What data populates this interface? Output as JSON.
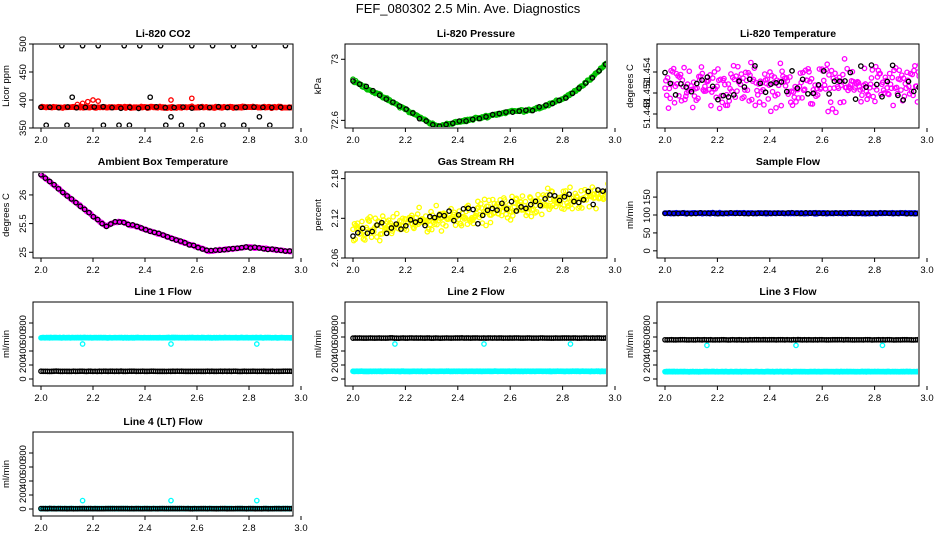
{
  "page": {
    "title": "FEF_080302  2.5 Min. Ave. Diagnostics"
  },
  "colors": {
    "black": "#000000",
    "red": "#ff0000",
    "green": "#00c000",
    "magenta": "#ff00ff",
    "yellow": "#ffff00",
    "cyan": "#00ffff",
    "blue": "#0000ff"
  },
  "chart_data": [
    {
      "id": "co2",
      "type": "scatter",
      "title": "Li-820 CO2",
      "xlabel": "",
      "ylabel": "Licor ppm",
      "xlim": [
        2.0,
        3.0
      ],
      "ylim": [
        350,
        500
      ],
      "xticks": [
        "2.0",
        "2.2",
        "2.4",
        "2.6",
        "2.8",
        "3.0"
      ],
      "yticks": [
        350,
        400,
        450,
        500
      ],
      "series": [
        {
          "name": "red",
          "color": "red",
          "pattern": "flat",
          "start": 387,
          "end": 387,
          "noise": 2,
          "n": 250,
          "spikes": [
            [
              2.14,
              392
            ],
            [
              2.16,
              394
            ],
            [
              2.18,
              397
            ],
            [
              2.2,
              400
            ],
            [
              2.22,
              398
            ],
            [
              2.5,
              400
            ],
            [
              2.58,
              403
            ]
          ]
        },
        {
          "name": "black",
          "color": "black",
          "pattern": "flat",
          "start": 387,
          "end": 387,
          "noise": 2,
          "n": 30,
          "spikes": [
            [
              2.02,
              355
            ],
            [
              2.08,
              497
            ],
            [
              2.1,
              355
            ],
            [
              2.12,
              405
            ],
            [
              2.16,
              497
            ],
            [
              2.22,
              497
            ],
            [
              2.24,
              355
            ],
            [
              2.3,
              355
            ],
            [
              2.32,
              497
            ],
            [
              2.34,
              355
            ],
            [
              2.38,
              497
            ],
            [
              2.42,
              405
            ],
            [
              2.46,
              497
            ],
            [
              2.48,
              355
            ],
            [
              2.5,
              370
            ],
            [
              2.54,
              355
            ],
            [
              2.58,
              497
            ],
            [
              2.62,
              355
            ],
            [
              2.66,
              497
            ],
            [
              2.7,
              355
            ],
            [
              2.74,
              497
            ],
            [
              2.78,
              355
            ],
            [
              2.82,
              497
            ],
            [
              2.84,
              370
            ],
            [
              2.88,
              355
            ],
            [
              2.94,
              497
            ],
            [
              2.98,
              355
            ],
            [
              2.99,
              405
            ]
          ]
        }
      ]
    },
    {
      "id": "pressure",
      "type": "scatter",
      "title": "Li-820 Pressure",
      "xlabel": "",
      "ylabel": "kPa",
      "xlim": [
        2.0,
        3.0
      ],
      "ylim": [
        72.55,
        73.1
      ],
      "xticks": [
        "2.0",
        "2.2",
        "2.4",
        "2.6",
        "2.8",
        "3.0"
      ],
      "yticks": [
        72.6,
        73.0
      ],
      "series": [
        {
          "name": "green",
          "color": "green",
          "pattern": "pressure",
          "noise": 0.012,
          "n": 200
        },
        {
          "name": "black",
          "color": "black",
          "pattern": "pressure",
          "noise": 0.012,
          "n": 40
        }
      ]
    },
    {
      "id": "licor_temp",
      "type": "scatter",
      "title": "Li-820 Temperature",
      "xlabel": "",
      "ylabel": "degrees C",
      "xlim": [
        2.0,
        3.0
      ],
      "ylim": [
        51.446,
        51.458
      ],
      "xticks": [
        "2.0",
        "2.2",
        "2.4",
        "2.6",
        "2.8",
        "3.0"
      ],
      "yticks": [
        51.448,
        51.451,
        51.454
      ],
      "series": [
        {
          "name": "magenta",
          "color": "magenta",
          "pattern": "flat",
          "start": 51.452,
          "end": 51.452,
          "noise": 0.0045,
          "n": 300
        },
        {
          "name": "black",
          "color": "black",
          "pattern": "flat",
          "start": 51.452,
          "end": 51.452,
          "noise": 0.004,
          "n": 50
        }
      ]
    },
    {
      "id": "ambient_temp",
      "type": "scatter",
      "title": "Ambient Box Temperature",
      "xlabel": "",
      "ylabel": "degrees C",
      "xlim": [
        2.0,
        3.0
      ],
      "ylim": [
        24.9,
        26.4
      ],
      "xticks": [
        "2.0",
        "2.2",
        "2.4",
        "2.6",
        "2.8",
        "3.0"
      ],
      "yticks": [
        25.0,
        25.5,
        26.0
      ],
      "series": [
        {
          "name": "magenta",
          "color": "magenta",
          "pattern": "ambient",
          "noise": 0.015,
          "n": 200
        },
        {
          "name": "black",
          "color": "black",
          "pattern": "ambient",
          "noise": 0.015,
          "n": 60
        }
      ]
    },
    {
      "id": "rh",
      "type": "scatter",
      "title": "Gas Stream RH",
      "xlabel": "",
      "ylabel": "percent",
      "xlim": [
        2.0,
        3.0
      ],
      "ylim": [
        2.06,
        2.19
      ],
      "xticks": [
        "2.0",
        "2.2",
        "2.4",
        "2.6",
        "2.8",
        "3.0"
      ],
      "yticks": [
        2.06,
        2.12,
        2.18
      ],
      "series": [
        {
          "name": "yellow",
          "color": "yellow",
          "pattern": "flat",
          "start": 2.1,
          "end": 2.16,
          "noise": 0.025,
          "n": 350
        },
        {
          "name": "black",
          "color": "black",
          "pattern": "flat",
          "start": 2.1,
          "end": 2.16,
          "noise": 0.02,
          "n": 55
        }
      ]
    },
    {
      "id": "sample_flow",
      "type": "scatter",
      "title": "Sample Flow",
      "xlabel": "",
      "ylabel": "ml/min",
      "xlim": [
        2.0,
        3.0
      ],
      "ylim": [
        -20,
        220
      ],
      "xticks": [
        "2.0",
        "2.2",
        "2.4",
        "2.6",
        "2.8",
        "3.0"
      ],
      "yticks": [
        0,
        50,
        100,
        150
      ],
      "series": [
        {
          "name": "blue",
          "color": "blue",
          "pattern": "flat",
          "start": 105,
          "end": 105,
          "noise": 2,
          "n": 300
        },
        {
          "name": "black",
          "color": "black",
          "pattern": "flat",
          "start": 105,
          "end": 105,
          "noise": 2,
          "n": 60
        }
      ]
    },
    {
      "id": "line1",
      "type": "scatter",
      "title": "Line 1 Flow",
      "xlabel": "",
      "ylabel": "ml/min",
      "xlim": [
        2.0,
        3.0
      ],
      "ylim": [
        -100,
        1100
      ],
      "xticks": [
        "2.0",
        "2.2",
        "2.4",
        "2.6",
        "2.8",
        "3.0"
      ],
      "yticks": [
        0,
        200,
        400,
        600,
        800
      ],
      "series": [
        {
          "name": "cyan",
          "color": "cyan",
          "pattern": "flat",
          "start": 590,
          "end": 590,
          "noise": 4,
          "n": 300,
          "spikes": [
            [
              2.16,
              500
            ],
            [
              2.5,
              500
            ],
            [
              2.83,
              500
            ]
          ]
        },
        {
          "name": "black",
          "color": "black",
          "pattern": "flat",
          "start": 110,
          "end": 110,
          "noise": 3,
          "n": 120
        }
      ]
    },
    {
      "id": "line2",
      "type": "scatter",
      "title": "Line 2 Flow",
      "xlabel": "",
      "ylabel": "ml/min",
      "xlim": [
        2.0,
        3.0
      ],
      "ylim": [
        -100,
        1100
      ],
      "xticks": [
        "2.0",
        "2.2",
        "2.4",
        "2.6",
        "2.8",
        "3.0"
      ],
      "yticks": [
        0,
        200,
        400,
        600,
        800
      ],
      "series": [
        {
          "name": "cyan",
          "color": "cyan",
          "pattern": "flat",
          "start": 110,
          "end": 110,
          "noise": 4,
          "n": 300,
          "spikes": [
            [
              2.16,
              500
            ],
            [
              2.5,
              500
            ],
            [
              2.83,
              500
            ]
          ]
        },
        {
          "name": "black",
          "color": "black",
          "pattern": "flat",
          "start": 585,
          "end": 585,
          "noise": 3,
          "n": 120
        }
      ]
    },
    {
      "id": "line3",
      "type": "scatter",
      "title": "Line 3 Flow",
      "xlabel": "",
      "ylabel": "ml/min",
      "xlim": [
        2.0,
        3.0
      ],
      "ylim": [
        -100,
        1100
      ],
      "xticks": [
        "2.0",
        "2.2",
        "2.4",
        "2.6",
        "2.8",
        "3.0"
      ],
      "yticks": [
        0,
        200,
        400,
        600,
        800
      ],
      "series": [
        {
          "name": "cyan",
          "color": "cyan",
          "pattern": "flat",
          "start": 105,
          "end": 105,
          "noise": 4,
          "n": 300,
          "spikes": [
            [
              2.16,
              480
            ],
            [
              2.5,
              480
            ],
            [
              2.83,
              480
            ]
          ]
        },
        {
          "name": "black",
          "color": "black",
          "pattern": "flat",
          "start": 560,
          "end": 560,
          "noise": 3,
          "n": 120
        }
      ]
    },
    {
      "id": "line4",
      "type": "scatter",
      "title": "Line 4 (LT) Flow",
      "xlabel": "",
      "ylabel": "ml/min",
      "xlim": [
        2.0,
        3.0
      ],
      "ylim": [
        -100,
        1100
      ],
      "xticks": [
        "2.0",
        "2.2",
        "2.4",
        "2.6",
        "2.8",
        "3.0"
      ],
      "yticks": [
        0,
        200,
        400,
        600,
        800
      ],
      "series": [
        {
          "name": "cyan",
          "color": "cyan",
          "pattern": "flat",
          "start": 5,
          "end": 5,
          "noise": 2,
          "n": 300,
          "spikes": [
            [
              2.16,
              120
            ],
            [
              2.5,
              120
            ],
            [
              2.83,
              120
            ]
          ]
        },
        {
          "name": "black",
          "color": "black",
          "pattern": "flat",
          "start": 5,
          "end": 5,
          "noise": 2,
          "n": 120
        }
      ]
    }
  ]
}
